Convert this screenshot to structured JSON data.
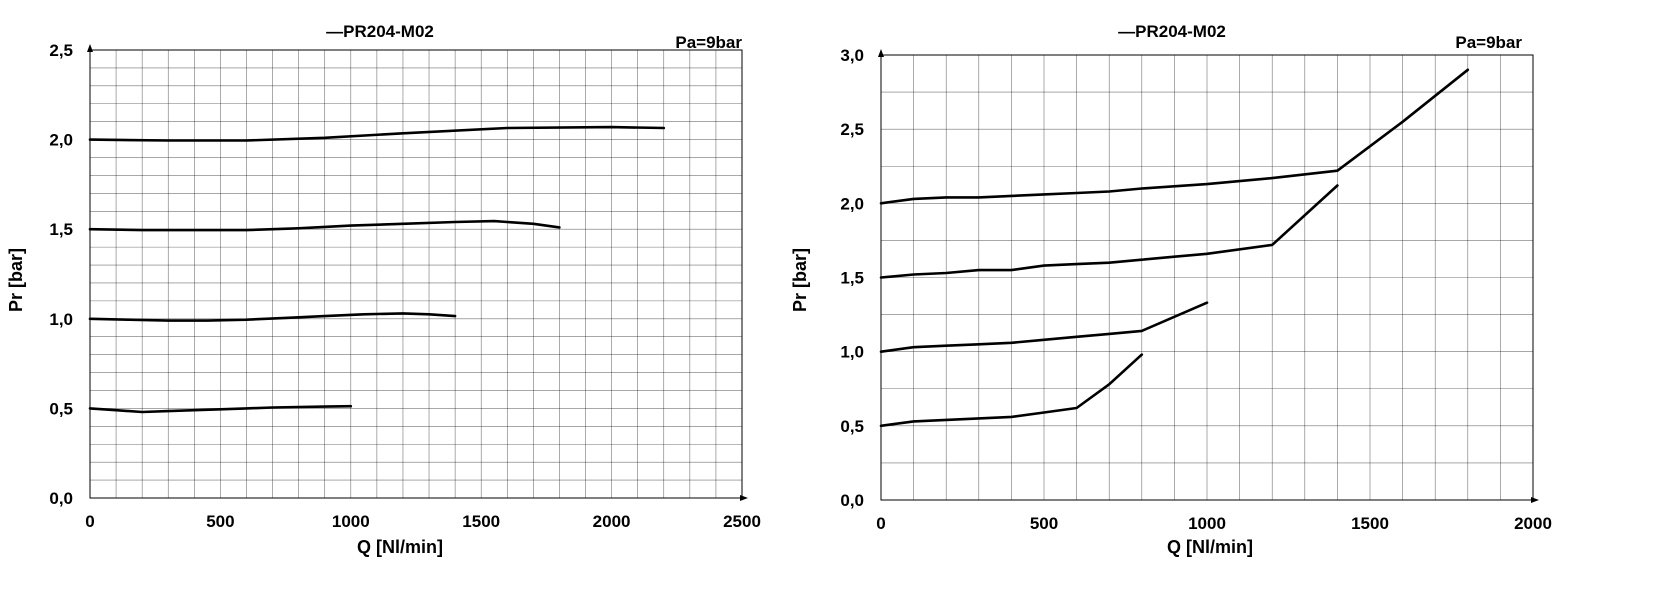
{
  "chart_data": [
    {
      "type": "line",
      "title": "—PR204-M02",
      "annotation": "Pa=9bar",
      "xlabel": "Q [Nl/min]",
      "ylabel": "Pr [bar]",
      "xlim": [
        0,
        2500
      ],
      "ylim": [
        0,
        2.5
      ],
      "xticks": [
        "0",
        "500",
        "1000",
        "1500",
        "2000",
        "2500"
      ],
      "yticks": [
        "0,0",
        "0,5",
        "1,0",
        "1,5",
        "2,0",
        "2,5"
      ],
      "grid": true,
      "series": [
        {
          "x": [
            0,
            100,
            200,
            300,
            400,
            500,
            600,
            700,
            800,
            900,
            1000
          ],
          "y": [
            0.5,
            0.49,
            0.48,
            0.485,
            0.49,
            0.495,
            0.5,
            0.505,
            0.508,
            0.51,
            0.512
          ]
        },
        {
          "x": [
            0,
            150,
            300,
            450,
            600,
            750,
            900,
            1050,
            1200,
            1300,
            1400
          ],
          "y": [
            1.0,
            0.995,
            0.99,
            0.99,
            0.995,
            1.005,
            1.015,
            1.025,
            1.03,
            1.025,
            1.015
          ]
        },
        {
          "x": [
            0,
            200,
            400,
            600,
            800,
            1000,
            1200,
            1400,
            1550,
            1700,
            1800
          ],
          "y": [
            1.5,
            1.495,
            1.495,
            1.495,
            1.505,
            1.52,
            1.53,
            1.54,
            1.545,
            1.53,
            1.51
          ]
        },
        {
          "x": [
            0,
            300,
            600,
            900,
            1200,
            1600,
            2000,
            2200
          ],
          "y": [
            2.0,
            1.995,
            1.995,
            2.01,
            2.035,
            2.065,
            2.07,
            2.065
          ]
        }
      ]
    },
    {
      "type": "line",
      "title": "—PR204-M02",
      "annotation": "Pa=9bar",
      "xlabel": "Q [Nl/min]",
      "ylabel": "Pr [bar]",
      "xlim": [
        0,
        2000
      ],
      "ylim": [
        0,
        3.0
      ],
      "xticks": [
        "0",
        "500",
        "1000",
        "1500",
        "2000"
      ],
      "yticks": [
        "0,0",
        "0,5",
        "1,0",
        "1,5",
        "2,0",
        "2,5",
        "3,0"
      ],
      "grid": true,
      "series": [
        {
          "x": [
            0,
            100,
            200,
            300,
            400,
            500,
            600,
            700,
            800
          ],
          "y": [
            0.5,
            0.53,
            0.54,
            0.55,
            0.56,
            0.59,
            0.62,
            0.78,
            0.98
          ]
        },
        {
          "x": [
            0,
            100,
            200,
            300,
            400,
            500,
            600,
            700,
            800,
            1000
          ],
          "y": [
            1.0,
            1.03,
            1.04,
            1.05,
            1.06,
            1.08,
            1.1,
            1.12,
            1.14,
            1.33
          ]
        },
        {
          "x": [
            0,
            100,
            200,
            300,
            400,
            500,
            600,
            700,
            800,
            900,
            1000,
            1200,
            1400
          ],
          "y": [
            1.5,
            1.52,
            1.53,
            1.55,
            1.55,
            1.58,
            1.59,
            1.6,
            1.62,
            1.64,
            1.66,
            1.72,
            2.12
          ]
        },
        {
          "x": [
            0,
            100,
            200,
            300,
            400,
            500,
            600,
            700,
            800,
            1000,
            1200,
            1400,
            1600,
            1800
          ],
          "y": [
            2.0,
            2.03,
            2.04,
            2.04,
            2.05,
            2.06,
            2.07,
            2.08,
            2.1,
            2.13,
            2.17,
            2.22,
            2.55,
            2.9
          ]
        }
      ]
    }
  ]
}
